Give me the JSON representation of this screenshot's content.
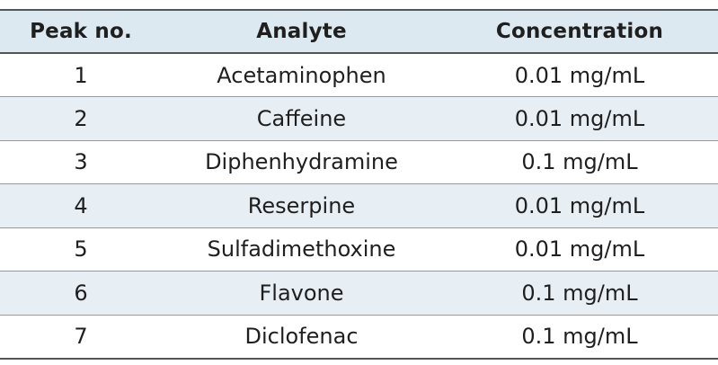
{
  "table": {
    "headers": [
      "Peak no.",
      "Analyte",
      "Concentration"
    ],
    "rows": [
      [
        "1",
        "Acetaminophen",
        "0.01 mg/mL"
      ],
      [
        "2",
        "Caffeine",
        "0.01 mg/mL"
      ],
      [
        "3",
        "Diphenhydramine",
        "0.1 mg/mL"
      ],
      [
        "4",
        "Reserpine",
        "0.01 mg/mL"
      ],
      [
        "5",
        "Sulfadimethoxine",
        "0.01 mg/mL"
      ],
      [
        "6",
        "Flavone",
        "0.1 mg/mL"
      ],
      [
        "7",
        "Diclofenac",
        "0.1 mg/mL"
      ]
    ]
  }
}
